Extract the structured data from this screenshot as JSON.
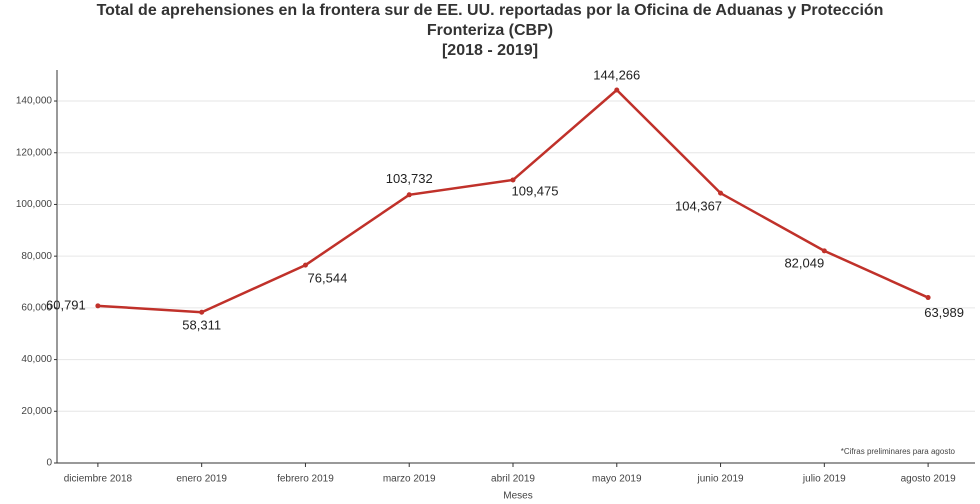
{
  "chart_data": {
    "type": "line",
    "title": [
      "Total de aprehensiones en la frontera sur de EE. UU. reportadas por la Oficina de Aduanas y Protección",
      "Fronteriza (CBP)",
      "[2018 - 2019]"
    ],
    "x_label": "Meses",
    "annotation": "*Cifras preliminares para agosto",
    "categories": [
      "diciembre 2018",
      "enero 2019",
      "febrero 2019",
      "marzo 2019",
      "abril 2019",
      "mayo 2019",
      "junio 2019",
      "julio 2019",
      "agosto 2019"
    ],
    "series": [
      {
        "color": "#c0312a",
        "values": [
          60791,
          58311,
          76544,
          103732,
          109475,
          144266,
          104367,
          82049,
          63989
        ],
        "value_labels": [
          "60,791",
          "58,311",
          "76,544",
          "103,732",
          "109,475",
          "144,266",
          "104,367",
          "82,049",
          "63,989"
        ]
      }
    ],
    "ylim": [
      0,
      152000
    ],
    "yticks": [
      0,
      {
        "value": 20000,
        "label": "20,000"
      },
      {
        "value": 40000,
        "label": "40,000"
      },
      {
        "value": 60000,
        "label": "60,000"
      },
      {
        "value": 80000,
        "label": "80,000"
      },
      {
        "value": 100000,
        "label": "100,000"
      },
      {
        "value": 120000,
        "label": "120,000"
      },
      {
        "value": 140000,
        "label": "140,000"
      }
    ],
    "grid": true
  }
}
